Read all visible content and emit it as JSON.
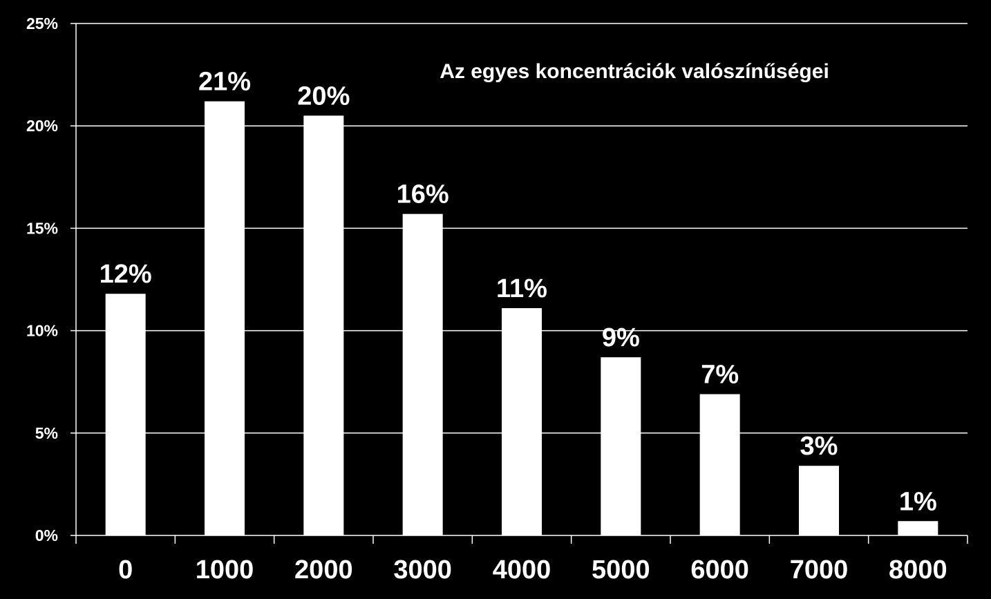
{
  "chart_data": {
    "type": "bar",
    "title": "Az egyes koncentrációk valószínűségei",
    "xlabel": "",
    "ylabel": "",
    "categories": [
      "0",
      "1000",
      "2000",
      "3000",
      "4000",
      "5000",
      "6000",
      "7000",
      "8000"
    ],
    "values": [
      0.118,
      0.212,
      0.205,
      0.157,
      0.111,
      0.087,
      0.069,
      0.034,
      0.007
    ],
    "data_labels": [
      "12%",
      "21%",
      "20%",
      "16%",
      "11%",
      "9%",
      "7%",
      "3%",
      "1%"
    ],
    "y_ticks": [
      0,
      0.05,
      0.1,
      0.15,
      0.2,
      0.25
    ],
    "y_tick_labels": [
      "0%",
      "5%",
      "10%",
      "15%",
      "20%",
      "25%"
    ],
    "ylim": [
      0,
      0.25
    ],
    "grid": true,
    "legend": "none",
    "colors": {
      "background": "#000000",
      "bar": "#ffffff",
      "grid": "#ffffff",
      "text": "#ffffff"
    }
  }
}
